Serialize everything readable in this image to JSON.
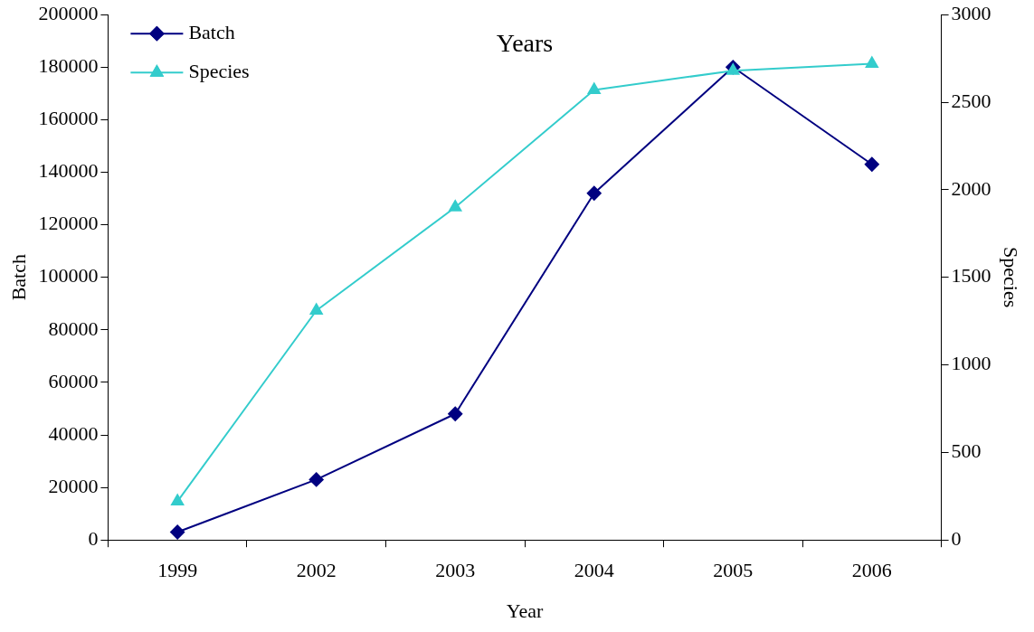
{
  "chart_data": {
    "type": "line",
    "title": "Years",
    "xlabel": "Year",
    "ylabel": "Batch",
    "y2label": "Species",
    "categories": [
      "1999",
      "2002",
      "2003",
      "2004",
      "2005",
      "2006"
    ],
    "series": [
      {
        "name": "Batch",
        "color": "#000080",
        "marker": "diamond",
        "values": [
          3000,
          23000,
          48000,
          132000,
          180000,
          143000
        ]
      },
      {
        "name": "Species",
        "color": "#33cccc",
        "marker": "triangle",
        "axis": "y2",
        "values": [
          220,
          1310,
          1900,
          2570,
          2680,
          2720
        ]
      }
    ],
    "ylim": [
      0,
      200000
    ],
    "yticks": [
      0,
      20000,
      40000,
      60000,
      80000,
      100000,
      120000,
      140000,
      160000,
      180000,
      200000
    ],
    "y2lim": [
      0,
      3000
    ],
    "y2ticks": [
      0,
      500,
      1000,
      1500,
      2000,
      2500,
      3000
    ],
    "legend": "top left"
  }
}
